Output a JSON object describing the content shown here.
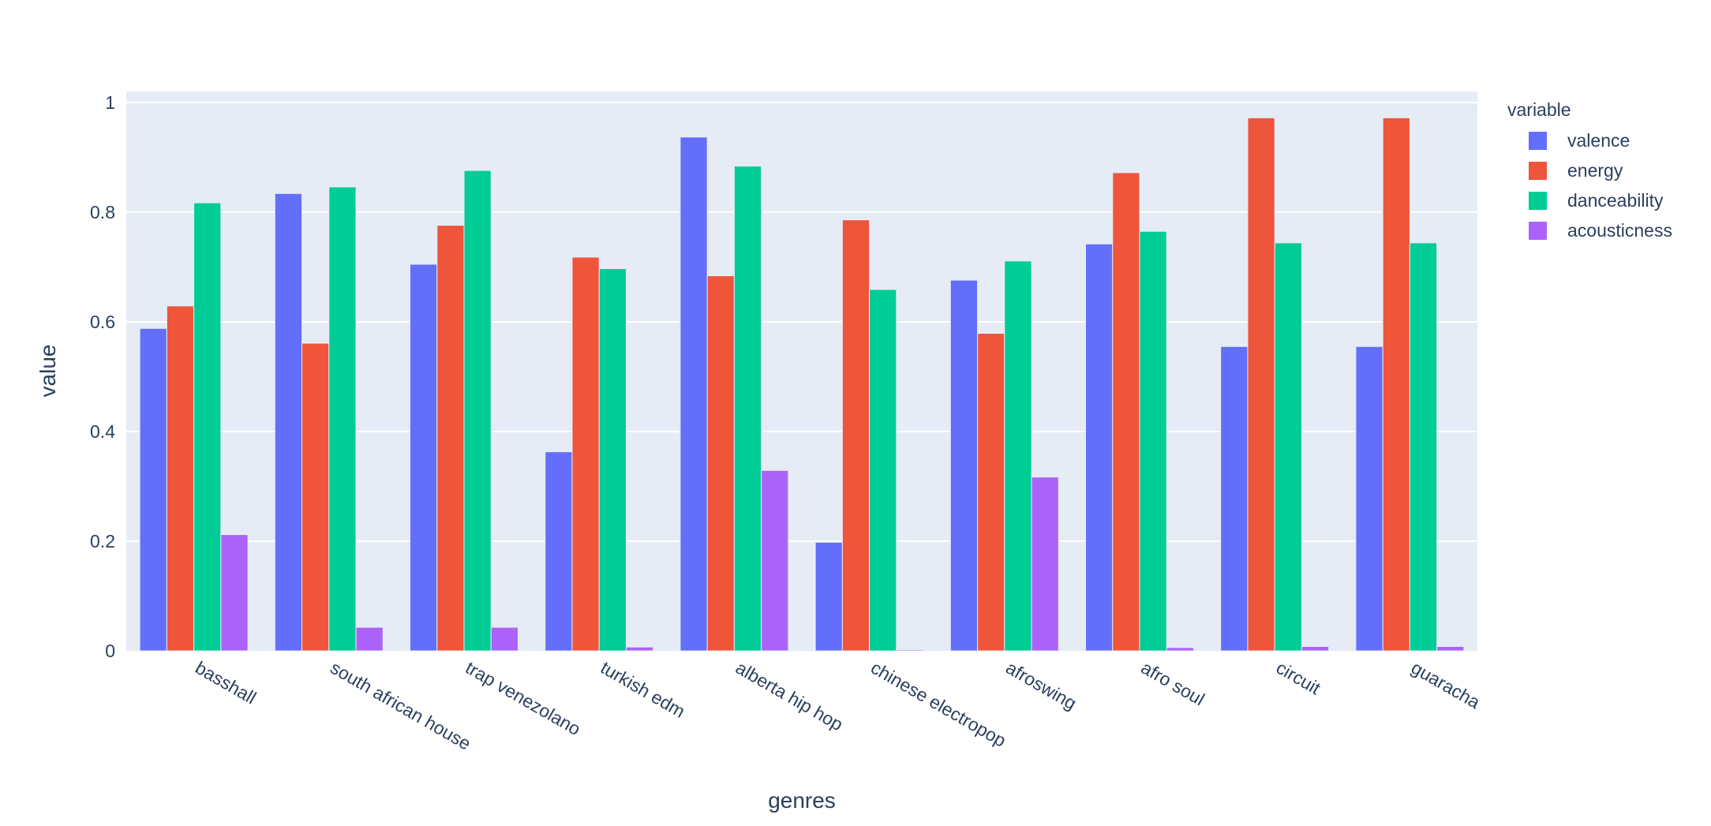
{
  "chart_data": {
    "type": "bar",
    "barmode": "group",
    "title": "",
    "xlabel": "genres",
    "ylabel": "value",
    "ylim": [
      0,
      1.02
    ],
    "yticks": [
      0,
      0.2,
      0.4,
      0.6,
      0.8,
      1
    ],
    "ytick_labels": [
      "0",
      "0.2",
      "0.4",
      "0.6",
      "0.8",
      "1"
    ],
    "grid": true,
    "legend_title": "variable",
    "legend_position": "top-right",
    "categories": [
      "basshall",
      "south african house",
      "trap venezolano",
      "turkish edm",
      "alberta hip hop",
      "chinese electropop",
      "afroswing",
      "afro soul",
      "circuit",
      "guaracha"
    ],
    "series": [
      {
        "name": "valence",
        "color": "#636efa",
        "values": [
          0.588,
          0.834,
          0.705,
          0.363,
          0.937,
          0.198,
          0.676,
          0.742,
          0.555,
          0.555
        ]
      },
      {
        "name": "energy",
        "color": "#ef553b",
        "values": [
          0.629,
          0.561,
          0.776,
          0.718,
          0.684,
          0.786,
          0.579,
          0.872,
          0.972,
          0.972
        ]
      },
      {
        "name": "danceability",
        "color": "#00cc96",
        "values": [
          0.817,
          0.846,
          0.876,
          0.697,
          0.884,
          0.659,
          0.711,
          0.765,
          0.744,
          0.744
        ]
      },
      {
        "name": "acousticness",
        "color": "#ab63fa",
        "values": [
          0.212,
          0.043,
          0.043,
          0.007,
          0.329,
          0.002,
          0.317,
          0.006,
          0.008,
          0.008
        ]
      }
    ]
  }
}
